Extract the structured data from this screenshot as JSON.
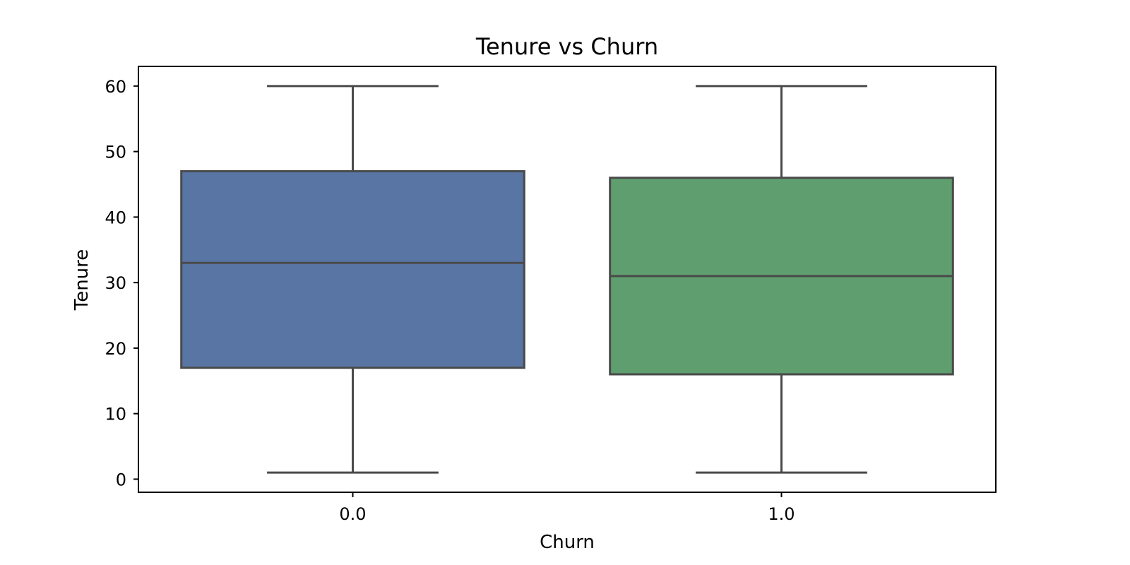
{
  "chart_data": {
    "type": "box",
    "title": "Tenure vs Churn",
    "xlabel": "Churn",
    "ylabel": "Tenure",
    "categories": [
      "0.0",
      "1.0"
    ],
    "boxes": [
      {
        "category": "0.0",
        "whisker_low": 1,
        "q1": 17,
        "median": 33,
        "q3": 47,
        "whisker_high": 60,
        "color": "#5875a4"
      },
      {
        "category": "1.0",
        "whisker_low": 1,
        "q1": 16,
        "median": 31,
        "q3": 46,
        "whisker_high": 60,
        "color": "#5f9e6e"
      }
    ],
    "ylim": [
      -2,
      63
    ],
    "yticks": [
      0,
      10,
      20,
      30,
      40,
      50,
      60
    ],
    "grid": false,
    "legend": "none",
    "line_color": "#4a4a4a"
  }
}
